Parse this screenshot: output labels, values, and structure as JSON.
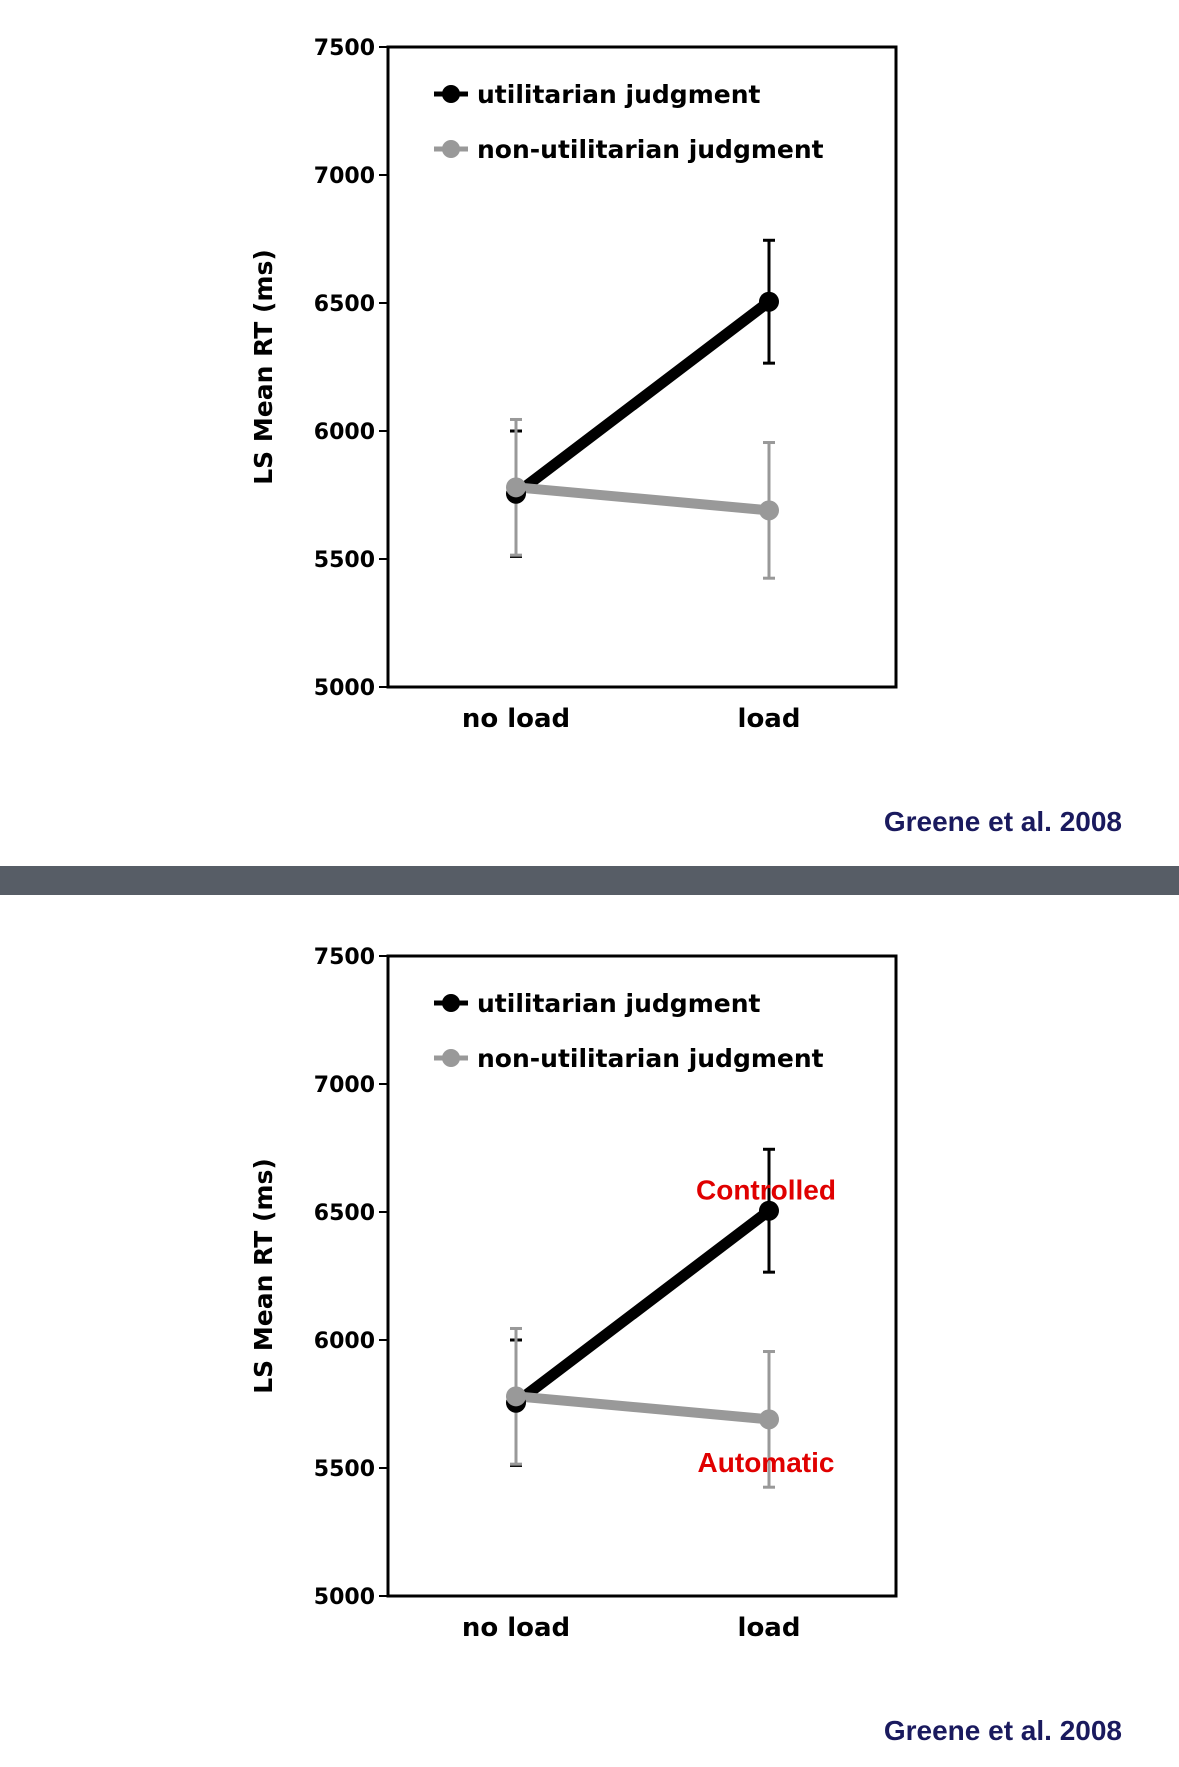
{
  "colors": {
    "background": "#ffffff",
    "divider": "#575d66",
    "citation": "#1a1a5e",
    "annotation": "#e00000",
    "axis": "#000000",
    "series_utilitarian": "#000000",
    "series_non_utilitarian": "#999999"
  },
  "divider": {
    "name": "slide-divider"
  },
  "chart_data": [
    {
      "type": "line",
      "title": "",
      "xlabel": "",
      "ylabel": "LS Mean RT (ms)",
      "categories": [
        "no load",
        "load"
      ],
      "ylim": [
        5000,
        7500
      ],
      "yticks": [
        "5000",
        "5500",
        "6000",
        "6500",
        "7000",
        "7500"
      ],
      "grid": false,
      "legend_position": "top-left",
      "series": [
        {
          "name": "utilitarian judgment",
          "values": [
            5755,
            6505
          ],
          "error": [
            245,
            240
          ]
        },
        {
          "name": "non-utilitarian judgment",
          "values": [
            5780,
            5690
          ],
          "error": [
            265,
            265
          ]
        }
      ],
      "annotations": [],
      "citation": "Greene et al. 2008"
    },
    {
      "type": "line",
      "title": "",
      "xlabel": "",
      "ylabel": "LS Mean RT (ms)",
      "categories": [
        "no load",
        "load"
      ],
      "ylim": [
        5000,
        7500
      ],
      "yticks": [
        "5000",
        "5500",
        "6000",
        "6500",
        "7000",
        "7500"
      ],
      "grid": false,
      "legend_position": "top-left",
      "series": [
        {
          "name": "utilitarian judgment",
          "values": [
            5755,
            6505
          ],
          "error": [
            245,
            240
          ]
        },
        {
          "name": "non-utilitarian judgment",
          "values": [
            5780,
            5690
          ],
          "error": [
            265,
            265
          ]
        }
      ],
      "annotations": [
        {
          "text": "Controlled",
          "series": 0,
          "point": 1,
          "placement": "above"
        },
        {
          "text": "Automatic",
          "series": 1,
          "point": 1,
          "placement": "below"
        }
      ],
      "citation": "Greene et al. 2008"
    }
  ]
}
